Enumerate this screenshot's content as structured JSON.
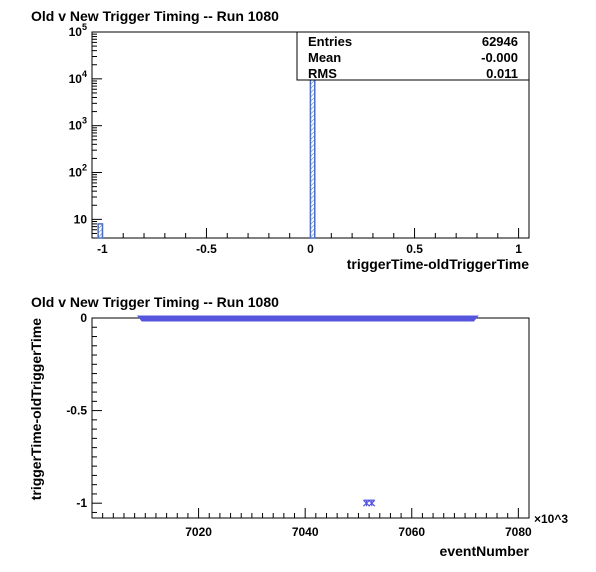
{
  "colors": {
    "histogram": "#4a6fc4",
    "markers": "#5555dd"
  },
  "chart_data": [
    {
      "type": "bar",
      "title": "Old v New Trigger Timing -- Run 1080",
      "xlabel": "triggerTime-oldTriggerTime",
      "ylabel": "",
      "log_y": true,
      "xlim": [
        -1.05,
        1.05
      ],
      "ylim": [
        4,
        100000
      ],
      "x_ticks": [
        "-1",
        "-0.5",
        "0",
        "0.5",
        "1"
      ],
      "y_ticks": [
        "10",
        "10^2",
        "10^3",
        "10^4",
        "10^5"
      ],
      "bins": [
        {
          "x": -1.01,
          "width": 0.021,
          "count": 8
        },
        {
          "x": 0.01,
          "width": 0.021,
          "count": 62938
        }
      ],
      "stats": {
        "rows": [
          {
            "label": "Entries",
            "value": "62946"
          },
          {
            "label": "Mean",
            "value": "-0.000"
          },
          {
            "label": "RMS",
            "value": "0.011"
          }
        ]
      }
    },
    {
      "type": "scatter",
      "title": "Old v New Trigger Timing -- Run 1080",
      "xlabel": "eventNumber",
      "ylabel": "triggerTime-oldTriggerTime",
      "x_multiplier": "×10^3",
      "xlim": [
        7000,
        7082
      ],
      "ylim": [
        -1.08,
        0.0
      ],
      "x_ticks": [
        "7020",
        "7040",
        "7060",
        "7080"
      ],
      "y_ticks": [
        "0",
        "-0.5",
        "-1"
      ],
      "band": {
        "x_start": 7009,
        "x_end": 7072,
        "y": 0
      },
      "points": [
        {
          "x": 7051.5,
          "y": -1
        },
        {
          "x": 7052.5,
          "y": -1
        }
      ]
    }
  ]
}
